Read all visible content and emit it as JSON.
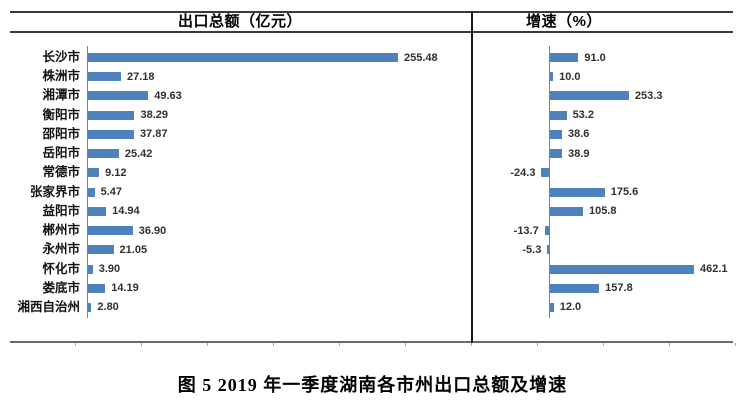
{
  "figure": {
    "caption": "图 5  2019 年一季度湖南各市州出口总额及增速"
  },
  "colors": {
    "bar": "#4f81bd",
    "divider": "#1a1a1a",
    "axis": "#808080"
  },
  "chart_data": [
    {
      "type": "bar",
      "orientation": "horizontal",
      "title": "出口总额（亿元）",
      "categories": [
        "长沙市",
        "株洲市",
        "湘潭市",
        "衡阳市",
        "邵阳市",
        "岳阳市",
        "常德市",
        "张家界市",
        "益阳市",
        "郴州市",
        "永州市",
        "怀化市",
        "娄底市",
        "湘西自治州"
      ],
      "values": [
        255.48,
        27.18,
        49.63,
        38.29,
        37.87,
        25.42,
        9.12,
        5.47,
        14.94,
        36.9,
        21.05,
        3.9,
        14.19,
        2.8
      ],
      "value_labels": [
        "255.48",
        "27.18",
        "49.63",
        "38.29",
        "37.87",
        "25.42",
        "9.12",
        "5.47",
        "14.94",
        "36.90",
        "21.05",
        "3.90",
        "14.19",
        "2.80"
      ],
      "xlim": [
        0,
        280
      ],
      "grid": false,
      "legend_position": "none",
      "bar_color": "#4f81bd"
    },
    {
      "type": "bar",
      "orientation": "horizontal",
      "title": "增速（%）",
      "categories": [
        "长沙市",
        "株洲市",
        "湘潭市",
        "衡阳市",
        "邵阳市",
        "岳阳市",
        "常德市",
        "张家界市",
        "益阳市",
        "郴州市",
        "永州市",
        "怀化市",
        "娄底市",
        "湘西自治州"
      ],
      "values": [
        91.0,
        10.0,
        253.3,
        53.2,
        38.6,
        38.9,
        -24.3,
        175.6,
        105.8,
        -13.7,
        -5.3,
        462.1,
        157.8,
        12.0
      ],
      "value_labels": [
        "91.0",
        "10.0",
        "253.3",
        "53.2",
        "38.6",
        "38.9",
        "-24.3",
        "175.6",
        "105.8",
        "-13.7",
        "-5.3",
        "462.1",
        "157.8",
        "12.0"
      ],
      "xlim": [
        -60,
        560
      ],
      "grid": false,
      "legend_position": "none",
      "bar_color": "#4f81bd"
    }
  ]
}
